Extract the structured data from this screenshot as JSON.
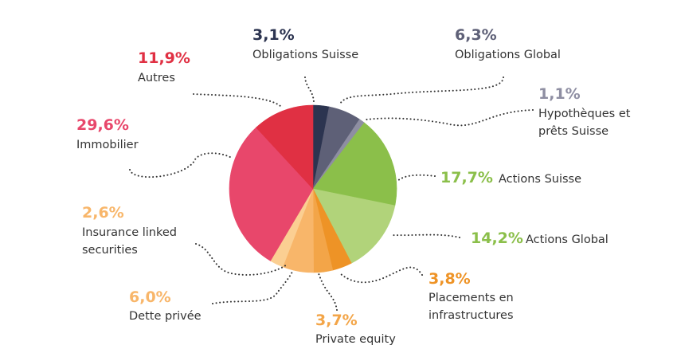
{
  "chart_data": {
    "type": "pie",
    "slices": [
      {
        "label": "Obligations Suisse",
        "value": 3.1,
        "display": "3,1%",
        "color": "#2c3450",
        "label_color": "#2c3450"
      },
      {
        "label": "Obligations Global",
        "value": 6.3,
        "display": "6,3%",
        "color": "#5e6077",
        "label_color": "#5e6077"
      },
      {
        "label": "Hypothèques et prêts Suisse",
        "value": 1.1,
        "display": "1,1%",
        "color": "#8e8ea2",
        "label_color": "#8e8ea2"
      },
      {
        "label": "Actions Suisse",
        "value": 17.7,
        "display": "17,7%",
        "color": "#8bbf4a",
        "label_color": "#8bbf4a"
      },
      {
        "label": "Actions Global",
        "value": 14.2,
        "display": "14,2%",
        "color": "#b1d37a",
        "label_color": "#8bbf4a"
      },
      {
        "label": "Placements en infrastructures",
        "value": 3.8,
        "display": "3,8%",
        "color": "#ee9326",
        "label_color": "#ee9326"
      },
      {
        "label": "Private equity",
        "value": 3.7,
        "display": "3,7%",
        "color": "#f3a548",
        "label_color": "#f3a548"
      },
      {
        "label": "Dette privée",
        "value": 6.0,
        "display": "6,0%",
        "color": "#f8b66a",
        "label_color": "#f8b66a"
      },
      {
        "label": "Insurance linked securities",
        "value": 2.6,
        "display": "2,6%",
        "color": "#fbcf92",
        "label_color": "#f8b66a"
      },
      {
        "label": "Immobilier",
        "value": 29.6,
        "display": "29,6%",
        "color": "#e8476b",
        "label_color": "#e8476b"
      },
      {
        "label": "Autres",
        "value": 11.9,
        "display": "11,9%",
        "color": "#e03043",
        "label_color": "#e03043"
      }
    ],
    "title": "",
    "start_angle": "top",
    "direction": "clockwise"
  }
}
